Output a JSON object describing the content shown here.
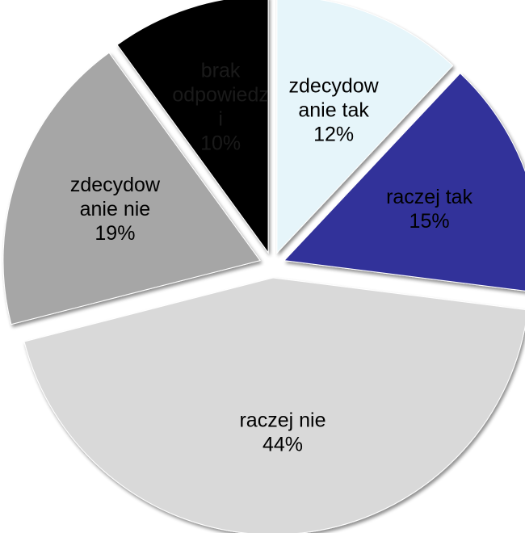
{
  "chart_data": {
    "type": "pie",
    "title": "",
    "slices": [
      {
        "label_lines": [
          "zdecydow",
          "anie tak"
        ],
        "value": 12,
        "value_label": "12%",
        "color": "#e6f5fa",
        "text_color": "#000000"
      },
      {
        "label_lines": [
          "raczej tak"
        ],
        "value": 15,
        "value_label": "15%",
        "color": "#33339a",
        "text_color": "#000000"
      },
      {
        "label_lines": [
          "raczej nie"
        ],
        "value": 44,
        "value_label": "44%",
        "color": "#d9d9d9",
        "text_color": "#000000"
      },
      {
        "label_lines": [
          "zdecydow",
          "anie nie"
        ],
        "value": 19,
        "value_label": "19%",
        "color": "#a6a6a6",
        "text_color": "#000000"
      },
      {
        "label_lines": [
          "brak",
          "odpowiedz",
          "i"
        ],
        "value": 10,
        "value_label": "10%",
        "color": "#050505",
        "text_color": "#1a1a1a"
      }
    ]
  }
}
